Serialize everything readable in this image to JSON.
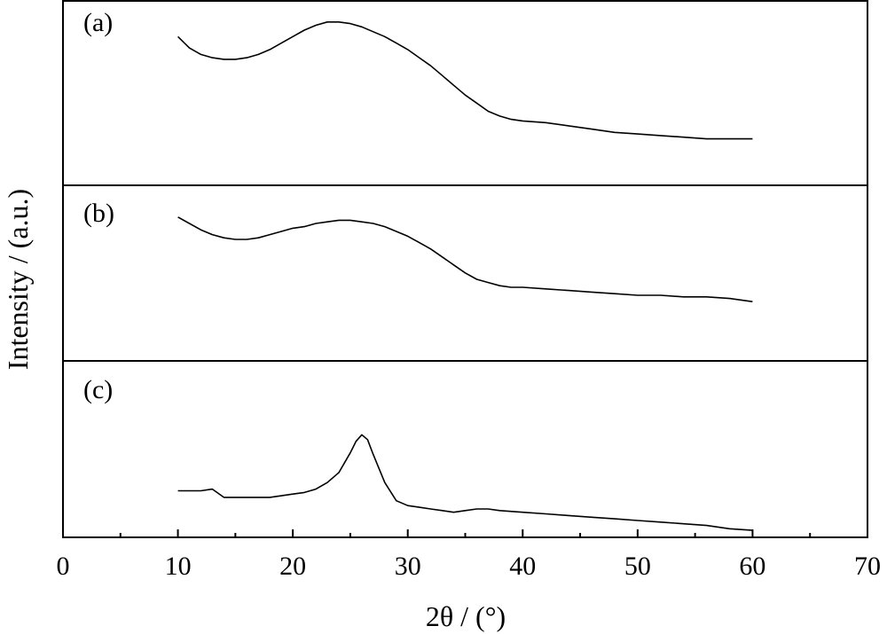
{
  "chart_data": {
    "type": "line",
    "xlabel": "2θ / (°)",
    "ylabel": "Intensity / (a.u.)",
    "xlim": [
      0,
      70
    ],
    "x_ticks": [
      0,
      10,
      20,
      30,
      40,
      50,
      60,
      70
    ],
    "x_tick_labels": [
      "0",
      "10",
      "20",
      "30",
      "40",
      "50",
      "60",
      "70"
    ],
    "y_ticks_shown": false,
    "grid": false,
    "legend": "none",
    "line_color": "#000000",
    "panels": [
      {
        "label": "(a)",
        "ylim": [
          0,
          100
        ],
        "x": [
          10,
          11,
          12,
          13,
          14,
          15,
          16,
          17,
          18,
          19,
          20,
          21,
          22,
          23,
          24,
          25,
          26,
          27,
          28,
          29,
          30,
          31,
          32,
          33,
          34,
          35,
          36,
          37,
          38,
          39,
          40,
          42,
          44,
          46,
          48,
          50,
          52,
          54,
          56,
          58,
          60
        ],
        "y": [
          84,
          77,
          73,
          71,
          70,
          70,
          71,
          73,
          76,
          80,
          84,
          88,
          91,
          93,
          93,
          92,
          90,
          87,
          84,
          80,
          76,
          71,
          66,
          60,
          54,
          48,
          43,
          38,
          35,
          33,
          32,
          31,
          29,
          27,
          25,
          24,
          23,
          22,
          21,
          21,
          21
        ]
      },
      {
        "label": "(b)",
        "ylim": [
          0,
          100
        ],
        "x": [
          10,
          11,
          12,
          13,
          14,
          15,
          16,
          17,
          18,
          19,
          20,
          21,
          22,
          23,
          24,
          25,
          26,
          27,
          28,
          29,
          30,
          31,
          32,
          33,
          34,
          35,
          36,
          37,
          38,
          39,
          40,
          42,
          44,
          46,
          48,
          50,
          52,
          54,
          56,
          58,
          60
        ],
        "y": [
          84,
          80,
          76,
          73,
          71,
          70,
          70,
          71,
          73,
          75,
          77,
          78,
          80,
          81,
          82,
          82,
          81,
          80,
          78,
          75,
          72,
          68,
          64,
          59,
          54,
          49,
          45,
          43,
          41,
          40,
          40,
          39,
          38,
          37,
          36,
          35,
          35,
          34,
          34,
          33,
          31
        ]
      },
      {
        "label": "(c)",
        "ylim": [
          0,
          100
        ],
        "x": [
          10,
          11,
          12,
          13,
          14,
          15,
          16,
          17,
          18,
          19,
          20,
          21,
          22,
          23,
          24,
          25,
          25.5,
          26,
          26.5,
          27,
          28,
          29,
          30,
          31,
          32,
          33,
          34,
          35,
          36,
          37,
          38,
          40,
          42,
          44,
          46,
          48,
          50,
          52,
          54,
          56,
          58,
          60
        ],
        "y": [
          25,
          25,
          25,
          26,
          21,
          21,
          21,
          21,
          21,
          22,
          23,
          24,
          26,
          30,
          36,
          48,
          55,
          59,
          56,
          47,
          30,
          19,
          16,
          15,
          14,
          13,
          12,
          13,
          14,
          14,
          13,
          12,
          11,
          10,
          9,
          8,
          7,
          6,
          5,
          4,
          2,
          1
        ]
      }
    ]
  }
}
